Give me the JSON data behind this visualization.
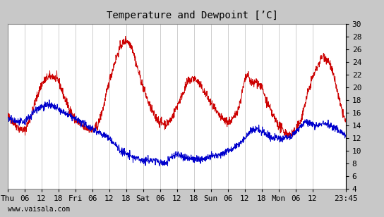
{
  "title": "Temperature and Dewpoint [’C]",
  "ylabel_right_ticks": [
    4,
    6,
    8,
    10,
    12,
    14,
    16,
    18,
    20,
    22,
    24,
    26,
    28,
    30
  ],
  "ylim": [
    4,
    30
  ],
  "xlabel_ticks": [
    "Thu",
    "06",
    "12",
    "18",
    "Fri",
    "06",
    "12",
    "18",
    "Sat",
    "06",
    "12",
    "18",
    "Sun",
    "06",
    "12",
    "18",
    "Mon",
    "06",
    "12",
    "23:45"
  ],
  "watermark": "www.vaisala.com",
  "red_color": "#cc0000",
  "blue_color": "#0000cc",
  "bg_color": "#c8c8c8",
  "plot_bg_color": "#ffffff",
  "grid_color": "#bbbbbb",
  "title_fontsize": 10,
  "tick_fontsize": 8,
  "watermark_fontsize": 7,
  "line_width": 0.7
}
